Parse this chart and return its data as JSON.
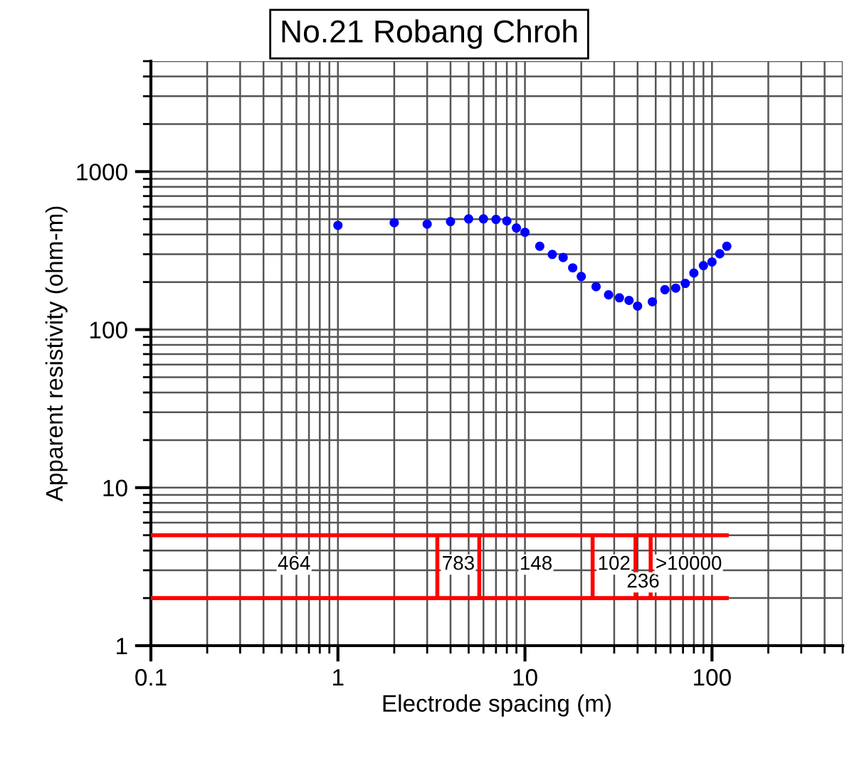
{
  "chart_data": {
    "type": "scatter",
    "title": "No.21 Robang Chroh",
    "xlabel": "Electrode spacing (m)",
    "ylabel": "Apparent resistivity (ohm-m)",
    "log": "xy",
    "xlim": [
      0.1,
      500
    ],
    "ylim": [
      1,
      5000
    ],
    "xticks": [
      0.1,
      1,
      10,
      100
    ],
    "yticks": [
      1,
      10,
      100,
      1000
    ],
    "grid": true,
    "series": [
      {
        "marker": "circle",
        "color": "#0000ff",
        "x": [
          1,
          2,
          3,
          4,
          5,
          6,
          7,
          8,
          9,
          10,
          12,
          14,
          16,
          18,
          20,
          24,
          28,
          32,
          36,
          40,
          48,
          56,
          64,
          72,
          80,
          90,
          100,
          110,
          120
        ],
        "values": [
          457,
          475,
          465,
          483,
          502,
          502,
          498,
          487,
          440,
          413,
          337,
          299,
          286,
          246,
          217,
          187,
          166,
          159,
          153,
          141,
          150,
          179,
          183,
          196,
          228,
          254,
          268,
          302,
          337
        ]
      },
      {
        "type": "line",
        "color": "#ff0000",
        "x": [
          0.1,
          120
        ],
        "values": [
          5,
          5
        ]
      },
      {
        "type": "line",
        "color": "#ff0000",
        "x": [
          0.1,
          120
        ],
        "values": [
          2,
          2
        ]
      },
      {
        "type": "line",
        "color": "#ff0000",
        "x": [
          3.4,
          3.4
        ],
        "values": [
          2,
          5
        ]
      },
      {
        "type": "line",
        "color": "#ff0000",
        "x": [
          5.7,
          5.7
        ],
        "values": [
          2,
          5
        ]
      },
      {
        "type": "line",
        "color": "#ff0000",
        "x": [
          23,
          23
        ],
        "values": [
          2,
          5
        ]
      },
      {
        "type": "line",
        "color": "#ff0000",
        "x": [
          39,
          39
        ],
        "values": [
          2,
          5
        ]
      },
      {
        "type": "line",
        "color": "#ff0000",
        "x": [
          47,
          47
        ],
        "values": [
          2,
          5
        ]
      }
    ],
    "annotations": [
      "464",
      "783",
      "148",
      "102",
      "236",
      ">10000"
    ]
  }
}
